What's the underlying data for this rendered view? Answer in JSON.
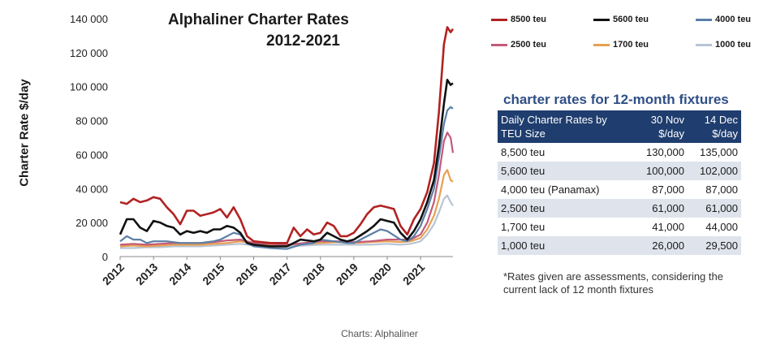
{
  "title_line1": "Alphaliner Charter Rates",
  "title_line2": "2012-2021",
  "caption": "Charts: Alphaliner",
  "chart_data": {
    "type": "line",
    "title": "Alphaliner Charter Rates 2012-2021",
    "ylabel": "Charter Rate $/day",
    "xlabel": "",
    "xlim": [
      2012,
      2021.97
    ],
    "ylim": [
      0,
      140000
    ],
    "yticks": [
      0,
      20000,
      40000,
      60000,
      80000,
      100000,
      120000,
      140000
    ],
    "ytick_labels": [
      "0",
      "20 000",
      "40 000",
      "60 000",
      "80 000",
      "100 000",
      "120 000",
      "140 000"
    ],
    "xtick_labels": [
      "2012",
      "2013",
      "2014",
      "2015",
      "2016",
      "2017",
      "2018",
      "2019",
      "2020",
      "2021"
    ],
    "grid": false,
    "legend_position": "top-right",
    "series": [
      {
        "name": "8500 teu",
        "color": "#b22222",
        "x": [
          2012.0,
          2012.2,
          2012.4,
          2012.6,
          2012.8,
          2013.0,
          2013.2,
          2013.4,
          2013.6,
          2013.8,
          2014.0,
          2014.2,
          2014.4,
          2014.6,
          2014.8,
          2015.0,
          2015.2,
          2015.4,
          2015.6,
          2015.8,
          2016.0,
          2016.5,
          2017.0,
          2017.2,
          2017.4,
          2017.6,
          2017.8,
          2018.0,
          2018.2,
          2018.4,
          2018.6,
          2018.8,
          2019.0,
          2019.2,
          2019.4,
          2019.6,
          2019.8,
          2020.0,
          2020.2,
          2020.4,
          2020.6,
          2020.8,
          2021.0,
          2021.2,
          2021.4,
          2021.55,
          2021.7,
          2021.8,
          2021.9,
          2021.97
        ],
        "values": [
          32000,
          31000,
          34000,
          32000,
          33000,
          35000,
          34000,
          29000,
          25000,
          19000,
          27000,
          27000,
          24000,
          25000,
          26000,
          28000,
          23000,
          29000,
          22000,
          12000,
          9000,
          8000,
          8000,
          17000,
          12000,
          16000,
          13000,
          14000,
          20000,
          18000,
          12000,
          12000,
          14000,
          19000,
          25000,
          29000,
          30000,
          29000,
          28000,
          18000,
          13000,
          22000,
          28000,
          38000,
          55000,
          85000,
          125000,
          135000,
          132000,
          134000
        ]
      },
      {
        "name": "5600 teu",
        "color": "#111111",
        "x": [
          2012.0,
          2012.2,
          2012.4,
          2012.6,
          2012.8,
          2013.0,
          2013.2,
          2013.4,
          2013.6,
          2013.8,
          2014.0,
          2014.2,
          2014.4,
          2014.6,
          2014.8,
          2015.0,
          2015.2,
          2015.4,
          2015.6,
          2015.8,
          2016.0,
          2016.5,
          2017.0,
          2017.4,
          2017.8,
          2018.0,
          2018.2,
          2018.4,
          2018.6,
          2018.8,
          2019.0,
          2019.4,
          2019.6,
          2019.8,
          2020.0,
          2020.2,
          2020.4,
          2020.6,
          2020.8,
          2021.0,
          2021.2,
          2021.4,
          2021.55,
          2021.7,
          2021.8,
          2021.9,
          2021.97
        ],
        "values": [
          13000,
          22000,
          22000,
          17000,
          15000,
          21000,
          20000,
          18000,
          17000,
          13000,
          15000,
          14000,
          15000,
          14000,
          16000,
          16000,
          18000,
          17000,
          14000,
          8000,
          7000,
          6000,
          6000,
          10000,
          9000,
          10000,
          14000,
          12000,
          10000,
          9000,
          10000,
          15000,
          18000,
          22000,
          21000,
          20000,
          14000,
          10000,
          15000,
          22000,
          32000,
          45000,
          65000,
          90000,
          104000,
          101000,
          102000
        ]
      },
      {
        "name": "4000 teu",
        "color": "#5b7fa6",
        "x": [
          2012.0,
          2012.2,
          2012.4,
          2012.6,
          2012.8,
          2013.0,
          2013.4,
          2013.8,
          2014.0,
          2014.4,
          2014.8,
          2015.0,
          2015.4,
          2015.6,
          2015.8,
          2016.0,
          2016.5,
          2017.0,
          2017.4,
          2017.8,
          2018.0,
          2018.4,
          2018.8,
          2019.0,
          2019.4,
          2019.8,
          2020.0,
          2020.4,
          2020.6,
          2020.8,
          2021.0,
          2021.2,
          2021.4,
          2021.55,
          2021.7,
          2021.8,
          2021.9,
          2021.97
        ],
        "values": [
          9000,
          12000,
          10000,
          10000,
          8000,
          9000,
          9000,
          8000,
          8000,
          8000,
          9000,
          10000,
          14000,
          13000,
          8000,
          6000,
          5000,
          4500,
          7000,
          8000,
          10000,
          9000,
          8000,
          8000,
          12000,
          16000,
          15000,
          10000,
          9000,
          12000,
          18000,
          28000,
          40000,
          58000,
          78000,
          86000,
          88000,
          87000
        ]
      },
      {
        "name": "2500 teu",
        "color": "#c45a7a",
        "x": [
          2012.0,
          2012.4,
          2012.8,
          2013.2,
          2013.6,
          2014.0,
          2014.4,
          2014.8,
          2015.2,
          2015.6,
          2016.0,
          2016.5,
          2017.0,
          2017.5,
          2018.0,
          2018.5,
          2019.0,
          2019.5,
          2020.0,
          2020.4,
          2020.7,
          2021.0,
          2021.2,
          2021.4,
          2021.55,
          2021.7,
          2021.8,
          2021.9,
          2021.97
        ],
        "values": [
          7000,
          7500,
          7000,
          7500,
          8000,
          8000,
          8000,
          8500,
          9500,
          10000,
          8000,
          7500,
          7000,
          8000,
          9000,
          9000,
          8500,
          9000,
          10000,
          10000,
          10000,
          13000,
          20000,
          32000,
          48000,
          68000,
          73000,
          70000,
          61000
        ]
      },
      {
        "name": "1700 teu",
        "color": "#e8a050",
        "x": [
          2012.0,
          2012.4,
          2012.8,
          2013.2,
          2013.6,
          2014.0,
          2014.4,
          2014.8,
          2015.2,
          2015.6,
          2016.0,
          2016.5,
          2017.0,
          2017.5,
          2018.0,
          2018.5,
          2019.0,
          2019.5,
          2020.0,
          2020.4,
          2020.7,
          2021.0,
          2021.2,
          2021.4,
          2021.55,
          2021.7,
          2021.8,
          2021.9,
          2021.97
        ],
        "values": [
          6000,
          6500,
          6000,
          6500,
          7000,
          7000,
          7000,
          7500,
          8000,
          9000,
          7500,
          7000,
          7000,
          7500,
          8000,
          8500,
          8000,
          8500,
          9000,
          8500,
          9000,
          11000,
          16000,
          24000,
          34000,
          48000,
          51000,
          45000,
          44000
        ]
      },
      {
        "name": "1000 teu",
        "color": "#b8c4d4",
        "x": [
          2012.0,
          2012.4,
          2012.8,
          2013.2,
          2013.6,
          2014.0,
          2014.4,
          2014.8,
          2015.2,
          2015.6,
          2016.0,
          2016.5,
          2017.0,
          2017.5,
          2018.0,
          2018.5,
          2019.0,
          2019.5,
          2020.0,
          2020.4,
          2020.7,
          2021.0,
          2021.2,
          2021.4,
          2021.55,
          2021.7,
          2021.8,
          2021.9,
          2021.97
        ],
        "values": [
          5000,
          5000,
          5500,
          5500,
          6000,
          6000,
          6000,
          6500,
          7000,
          7500,
          6500,
          6000,
          6000,
          6500,
          7000,
          7000,
          7000,
          7000,
          7500,
          7000,
          7500,
          9000,
          13000,
          19000,
          26000,
          34000,
          36000,
          32000,
          30000
        ]
      }
    ]
  },
  "table": {
    "title": "charter rates for 12-month fixtures",
    "header": {
      "size": "Daily Charter Rates by TEU Size",
      "col1": "30 Nov $/day",
      "col2": "14 Dec $/day"
    },
    "rows": [
      {
        "size": "8,500 teu",
        "nov30": "130,000",
        "dec14": "135,000"
      },
      {
        "size": "5,600 teu",
        "nov30": "100,000",
        "dec14": "102,000"
      },
      {
        "size": "4,000 teu (Panamax)",
        "nov30": "87,000",
        "dec14": "87,000"
      },
      {
        "size": "2,500 teu",
        "nov30": "61,000",
        "dec14": "61,000"
      },
      {
        "size": "1,700 teu",
        "nov30": "41,000",
        "dec14": "44,000"
      },
      {
        "size": "1,000 teu",
        "nov30": "26,000",
        "dec14": "29,500"
      }
    ],
    "footnote": "*Rates given are assessments, considering the current lack of 12 month fixtures"
  }
}
